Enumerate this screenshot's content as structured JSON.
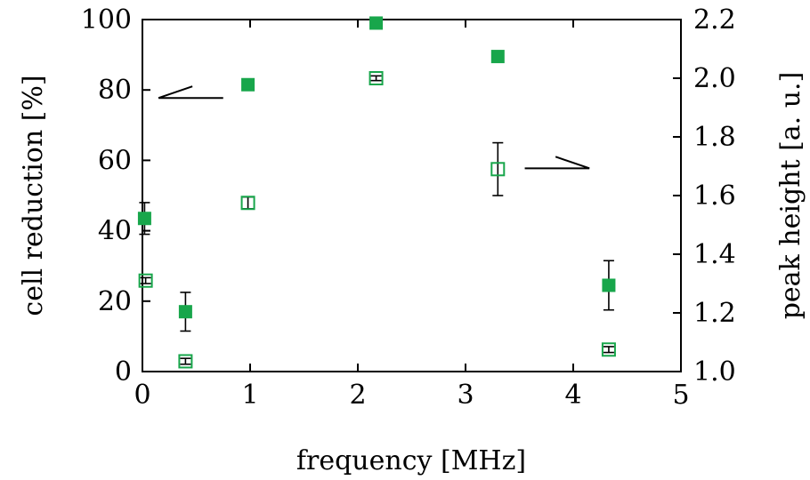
{
  "chart_data": {
    "type": "scatter",
    "title": "",
    "xlabel": "frequency [MHz]",
    "ylabel_left": "cell reduction [%]",
    "ylabel_right": "peak height [a. u.]",
    "xlim": [
      0,
      5
    ],
    "ylim_left": [
      0,
      100
    ],
    "ylim_right": [
      1.0,
      2.2
    ],
    "grid": false,
    "legend": "none",
    "x_ticks": [
      "0",
      "1",
      "2",
      "3",
      "4",
      "5"
    ],
    "y_left_ticks": [
      "0",
      "20",
      "40",
      "60",
      "80",
      "100"
    ],
    "y_right_ticks": [
      "1.0",
      "1.2",
      "1.4",
      "1.6",
      "1.8",
      "2.0",
      "2.2"
    ],
    "series": [
      {
        "axis": "left",
        "marker": "filled-square",
        "color": "#18a64b",
        "x": [
          0.02,
          0.4,
          0.98,
          2.17,
          3.3,
          4.33
        ],
        "y": [
          43.5,
          17,
          81.5,
          99,
          89.5,
          24.5
        ],
        "err": [
          4.5,
          5.5,
          0,
          0,
          1.5,
          7
        ]
      },
      {
        "axis": "right",
        "marker": "open-square",
        "color": "#18a64b",
        "x": [
          0.03,
          0.4,
          0.98,
          2.17,
          3.3,
          4.33
        ],
        "y": [
          1.31,
          1.035,
          1.575,
          2.0,
          1.69,
          1.075
        ],
        "err": [
          0.01,
          0.01,
          0.02,
          0.008,
          0.09,
          0.01
        ]
      }
    ],
    "annotations": [
      {
        "type": "arrow-pointer",
        "points_to": "left axis",
        "x": [
          0.15,
          0.75
        ],
        "y_axis": "left",
        "y": 81
      },
      {
        "type": "arrow-pointer",
        "points_to": "right axis",
        "x": [
          3.55,
          4.15
        ],
        "y_axis": "left",
        "y": 59
      }
    ]
  }
}
